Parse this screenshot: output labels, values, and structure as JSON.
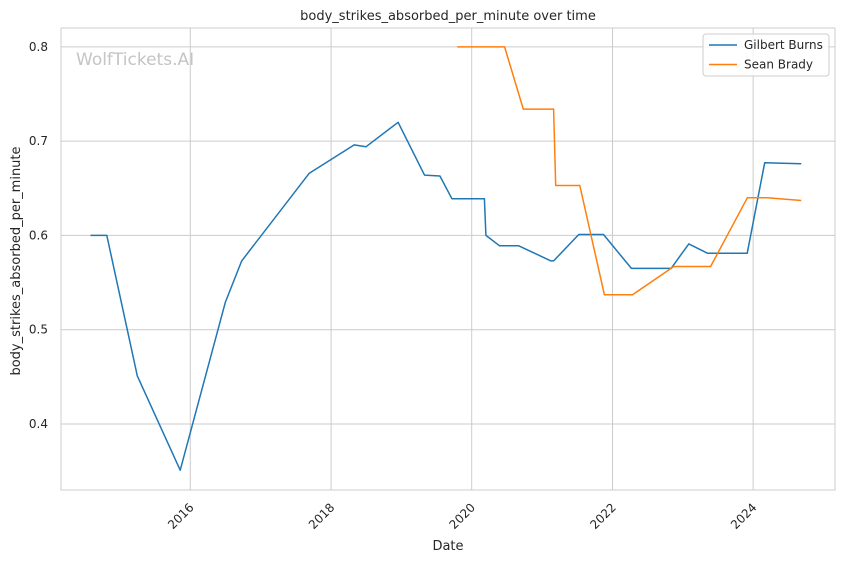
{
  "chart_data": {
    "type": "line",
    "title": "body_strikes_absorbed_per_minute over time",
    "xlabel": "Date",
    "ylabel": "body_strikes_absorbed_per_minute",
    "xlim": [
      "2014-03-01",
      "2025-03-01"
    ],
    "ylim": [
      0.33,
      0.82
    ],
    "xticks": [
      "2016",
      "2018",
      "2020",
      "2022",
      "2024"
    ],
    "yticks": [
      "0.4",
      "0.5",
      "0.6",
      "0.7",
      "0.8"
    ],
    "grid": true,
    "legend_position": "top-right",
    "watermark": "WolfTickets.AI",
    "series": [
      {
        "name": "Gilbert Burns",
        "color": "#1f77b4",
        "points": [
          [
            "2014-08-01",
            0.6
          ],
          [
            "2014-10-25",
            0.6
          ],
          [
            "2015-04-01",
            0.451
          ],
          [
            "2015-11-10",
            0.351
          ],
          [
            "2016-07-01",
            0.529
          ],
          [
            "2016-09-24",
            0.573
          ],
          [
            "2017-09-10",
            0.666
          ],
          [
            "2018-05-01",
            0.696
          ],
          [
            "2018-07-01",
            0.694
          ],
          [
            "2018-12-15",
            0.72
          ],
          [
            "2019-05-01",
            0.664
          ],
          [
            "2019-07-20",
            0.663
          ],
          [
            "2019-09-20",
            0.639
          ],
          [
            "2020-03-07",
            0.639
          ],
          [
            "2020-03-15",
            0.6
          ],
          [
            "2020-05-25",
            0.589
          ],
          [
            "2020-09-01",
            0.589
          ],
          [
            "2021-02-15",
            0.573
          ],
          [
            "2021-03-01",
            0.573
          ],
          [
            "2021-07-10",
            0.601
          ],
          [
            "2021-11-15",
            0.601
          ],
          [
            "2022-04-09",
            0.565
          ],
          [
            "2022-11-01",
            0.565
          ],
          [
            "2023-02-01",
            0.591
          ],
          [
            "2023-05-10",
            0.581
          ],
          [
            "2023-12-01",
            0.581
          ],
          [
            "2024-03-01",
            0.677
          ],
          [
            "2024-09-07",
            0.676
          ]
        ]
      },
      {
        "name": "Sean Brady",
        "color": "#ff7f0e",
        "points": [
          [
            "2019-10-18",
            0.8
          ],
          [
            "2020-06-20",
            0.8
          ],
          [
            "2020-09-25",
            0.734
          ],
          [
            "2021-03-01",
            0.734
          ],
          [
            "2021-03-12",
            0.653
          ],
          [
            "2021-07-15",
            0.653
          ],
          [
            "2021-11-20",
            0.537
          ],
          [
            "2022-04-15",
            0.537
          ],
          [
            "2022-11-15",
            0.567
          ],
          [
            "2023-05-25",
            0.567
          ],
          [
            "2023-12-02",
            0.64
          ],
          [
            "2024-03-15",
            0.64
          ],
          [
            "2024-09-07",
            0.637
          ]
        ]
      }
    ]
  }
}
